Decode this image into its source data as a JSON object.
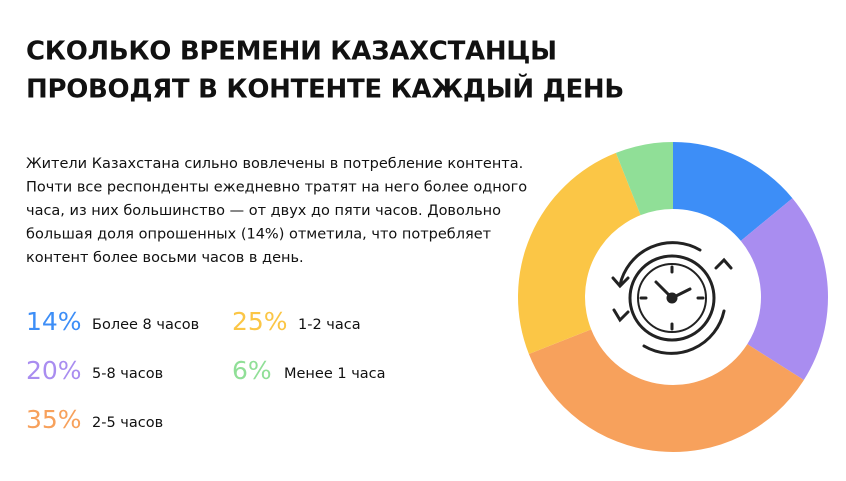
{
  "chart_data": {
    "type": "donut",
    "title": [
      "СКОЛЬКО ВРЕМЕНИ КАЗАХСТАНЦЫ",
      "ПРОВОДЯТ В КОНТЕНТЕ КАЖДЫЙ ДЕНЬ"
    ],
    "description": [
      "Жители Казахстана сильно вовлечены в потребление контента.",
      "Почти все респонденты ежедневно тратят на него более одного",
      "часа, из них большинство — от двух до пяти часов. Довольно",
      "большая доля опрошенных (14%) отметила, что потребляет",
      "контент более восьми часов в день."
    ],
    "categories": [
      "Более 8 часов",
      "5-8 часов",
      "2-5 часов",
      "1-2 часа",
      "Менее 1 часа"
    ],
    "values": [
      14,
      20,
      35,
      25,
      6
    ],
    "value_labels": [
      "14%",
      "20%",
      "35%",
      "25%",
      "6%"
    ],
    "colors": [
      "#3d8ef7",
      "#a98df0",
      "#f7a15c",
      "#fbc646",
      "#90df97"
    ]
  }
}
